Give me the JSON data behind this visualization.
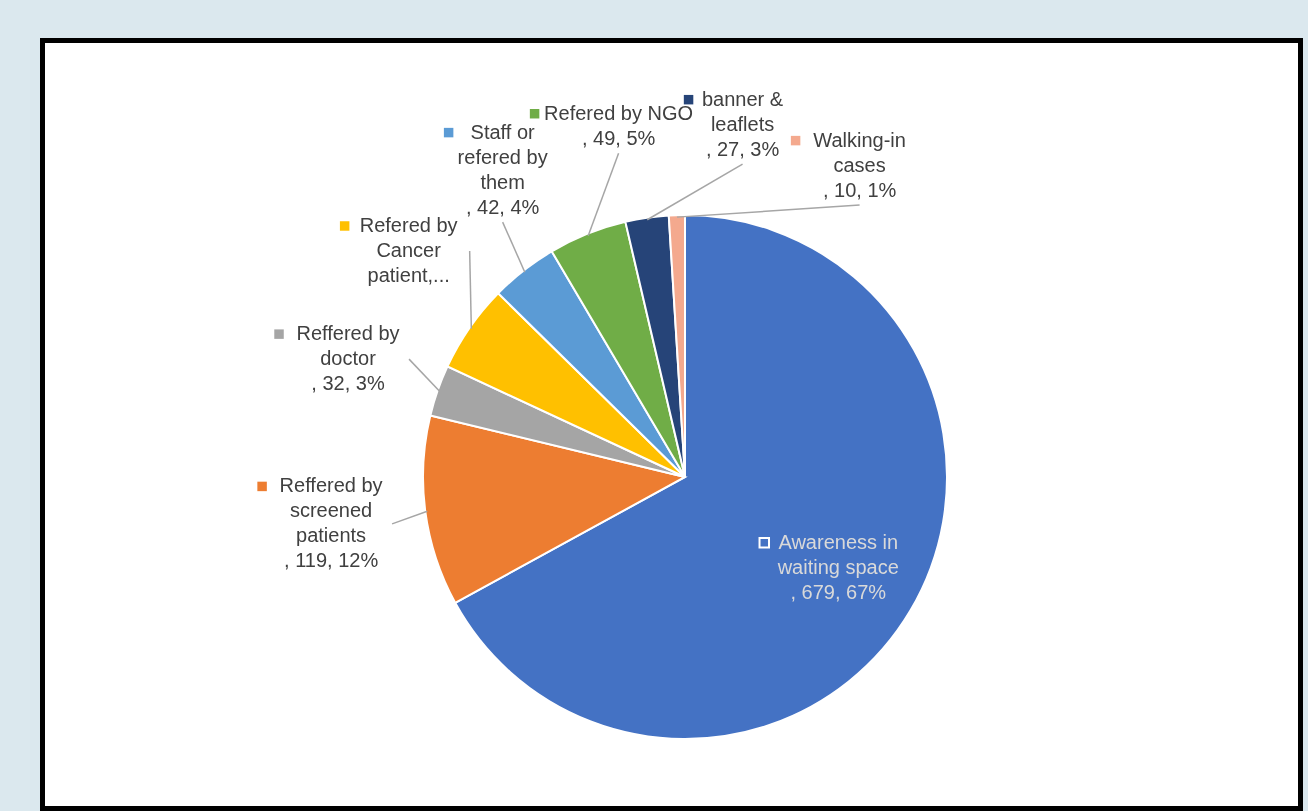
{
  "chart_data": {
    "type": "pie",
    "categories": [
      "Awareness in waiting space",
      "Reffered by screened patients",
      "Reffered by doctor",
      "Refered by Cancer patient,...",
      "Staff or refered by them",
      "Refered by NGO",
      "banner & leaflets",
      "Walking-in cases"
    ],
    "values": [
      679,
      119,
      32,
      55,
      42,
      49,
      27,
      10
    ],
    "legend": "left",
    "colors": [
      "#4472c4",
      "#ed7d31",
      "#a5a5a5",
      "#ffc000",
      "#5b9bd5",
      "#70ad47",
      "#264478",
      "#f4a98e"
    ],
    "value_labels": [
      ", 679, 67%",
      ", 119, 12%",
      ", 32, 3%",
      null,
      ", 42, 4%",
      ", 49, 5%",
      ", 27, 3%",
      ", 10, 1%"
    ]
  }
}
